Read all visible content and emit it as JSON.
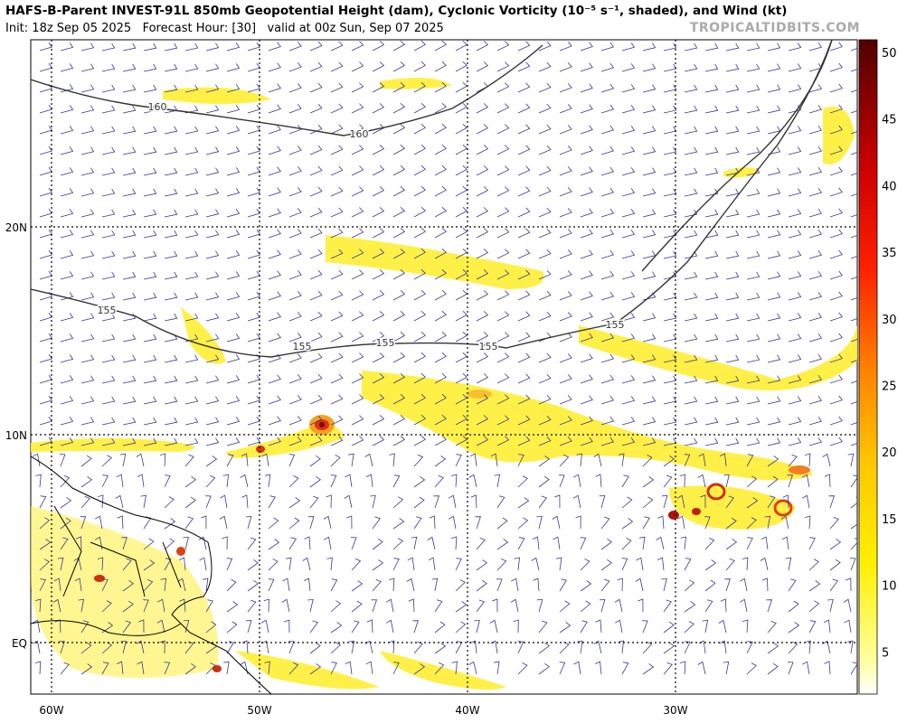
{
  "header": {
    "title": "HAFS-B-Parent INVEST-91L 850mb Geopotential Height (dam), Cyclonic Vorticity (10⁻⁵ s⁻¹, shaded), and Wind (kt)",
    "init": "Init: 18z Sep 05 2025",
    "forecast_hour": "Forecast Hour: [30]",
    "valid": "valid at 00z Sun, Sep 07 2025",
    "watermark": "TROPICALTIDBITS.COM"
  },
  "map": {
    "lat_labels": [
      "20N",
      "10N",
      "EQ"
    ],
    "lon_labels": [
      "60W",
      "50W",
      "40W",
      "30W"
    ],
    "contour_labels": [
      "160",
      "160",
      "155",
      "155",
      "155",
      "155",
      "155"
    ]
  },
  "colorbar": {
    "tick_labels": [
      "50",
      "45",
      "40",
      "35",
      "30",
      "25",
      "20",
      "15",
      "10",
      "5"
    ]
  }
}
